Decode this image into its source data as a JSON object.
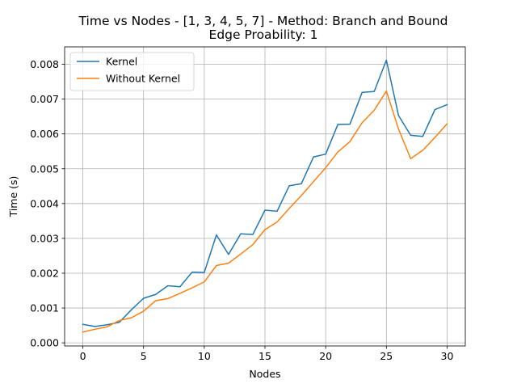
{
  "chart_data": {
    "type": "line",
    "title": "Time vs Nodes - [1, 3, 4, 5, 7] - Method: Branch and Bound",
    "subtitle": "Edge Proability: 1",
    "xlabel": "Nodes",
    "ylabel": "Time (s)",
    "xlim": [
      -1.5,
      31.5
    ],
    "ylim": [
      -9e-05,
      0.0085
    ],
    "xticks": [
      0,
      5,
      10,
      15,
      20,
      25,
      30
    ],
    "yticks": [
      0.0,
      0.001,
      0.002,
      0.003,
      0.004,
      0.005,
      0.006,
      0.007,
      0.008
    ],
    "ytick_labels": [
      "0.000",
      "0.001",
      "0.002",
      "0.003",
      "0.004",
      "0.005",
      "0.006",
      "0.007",
      "0.008"
    ],
    "grid": true,
    "legend_position": "top-left",
    "x": [
      0,
      1,
      2,
      3,
      4,
      5,
      6,
      7,
      8,
      9,
      10,
      11,
      12,
      13,
      14,
      15,
      16,
      17,
      18,
      19,
      20,
      21,
      22,
      23,
      24,
      25,
      26,
      27,
      28,
      29,
      30
    ],
    "series": [
      {
        "name": "Kernel",
        "color": "#1f77b4",
        "values": [
          0.00053,
          0.00047,
          0.00052,
          0.00059,
          0.00095,
          0.00128,
          0.00139,
          0.00164,
          0.00161,
          0.00203,
          0.00202,
          0.0031,
          0.00254,
          0.00313,
          0.00311,
          0.00381,
          0.00378,
          0.00451,
          0.00457,
          0.00534,
          0.00542,
          0.00627,
          0.00628,
          0.00719,
          0.00722,
          0.00812,
          0.00653,
          0.00596,
          0.00593,
          0.0067,
          0.00684
        ]
      },
      {
        "name": "Without Kernel",
        "color": "#ff7f0e",
        "values": [
          0.00031,
          0.00039,
          0.00046,
          0.00064,
          0.00072,
          0.00091,
          0.00121,
          0.00127,
          0.00142,
          0.00158,
          0.00175,
          0.00222,
          0.00229,
          0.00255,
          0.00282,
          0.00325,
          0.00347,
          0.00386,
          0.00423,
          0.00463,
          0.00503,
          0.00548,
          0.00578,
          0.00632,
          0.00668,
          0.00723,
          0.00614,
          0.00529,
          0.00553,
          0.0059,
          0.00629
        ]
      }
    ]
  }
}
